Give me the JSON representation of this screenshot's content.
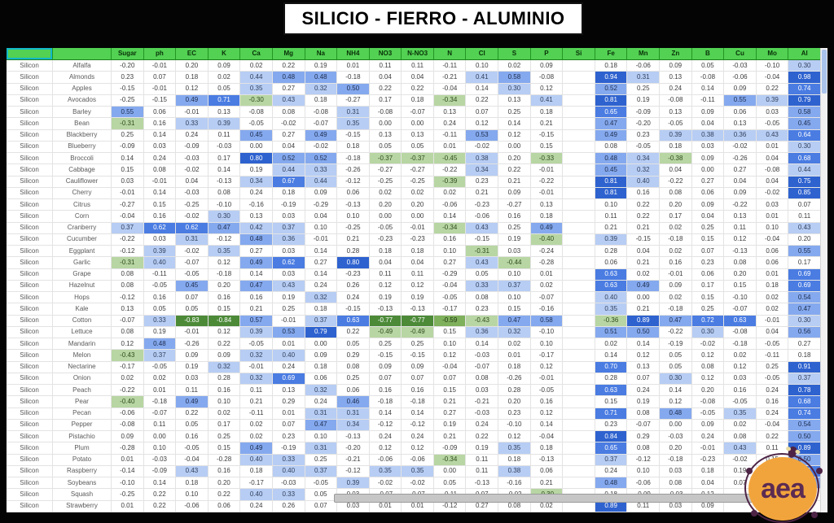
{
  "title": "SILICIO - FIERRO - ALUMINIO",
  "logo": {
    "text": "aea"
  },
  "colors": {
    "header_green": "#52d152",
    "blue_light": "#b7cdf4",
    "blue_medium": "#85a9ee",
    "blue_strong": "#4a7ce2",
    "blue_dark": "#2e62cf",
    "green_light": "#b8d6a3",
    "green_medium": "#7fb05c",
    "green_dark": "#4c8a38"
  },
  "chart_data": {
    "type": "heatmap",
    "title": "SILICIO - FIERRO - ALUMINIO",
    "row_label": "Silicon",
    "columns": [
      "Sugar",
      "ph",
      "EC",
      "K",
      "Ca",
      "Mg",
      "Na",
      "NH4",
      "NO3",
      "N-NO3",
      "N",
      "Cl",
      "S",
      "P",
      "Si",
      "Fe",
      "Mn",
      "Zn",
      "B",
      "Cu",
      "Mo",
      "Al"
    ],
    "crops": [
      "Alfalfa",
      "Almonds",
      "Apples",
      "Avocados",
      "Barley",
      "Bean",
      "Blackberry",
      "Blueberry",
      "Broccoli",
      "Cabbage",
      "Cauliflower",
      "Cherry",
      "Citrus",
      "Corn",
      "Cranberry",
      "Cucumber",
      "Eggplant",
      "Garlic",
      "Grape",
      "Hazelnut",
      "Hops",
      "Kale",
      "Cotton",
      "Lettuce",
      "Mandarin",
      "Melon",
      "Nectarine",
      "Onion",
      "Peach",
      "Pear",
      "Pecan",
      "Pepper",
      "Pistachio",
      "Plum",
      "Potato",
      "Raspberry",
      "Soybeans",
      "Squash",
      "Strawberry"
    ],
    "values": [
      [
        -0.2,
        -0.01,
        0.2,
        0.09,
        0.02,
        0.22,
        0.19,
        0.01,
        0.11,
        0.11,
        -0.11,
        0.1,
        0.02,
        0.09,
        "",
        0.18,
        -0.06,
        0.09,
        0.05,
        -0.03,
        -0.1,
        0.3
      ],
      [
        0.23,
        0.07,
        0.18,
        0.02,
        0.44,
        0.48,
        0.48,
        -0.18,
        0.04,
        0.04,
        -0.21,
        0.41,
        0.58,
        -0.08,
        "",
        0.94,
        0.31,
        0.13,
        -0.08,
        -0.06,
        -0.04,
        0.98
      ],
      [
        -0.15,
        -0.01,
        0.12,
        0.05,
        0.35,
        0.27,
        0.32,
        0.5,
        0.22,
        0.22,
        -0.04,
        0.14,
        0.3,
        0.12,
        "",
        0.52,
        0.25,
        0.24,
        0.14,
        0.09,
        0.22,
        0.74
      ],
      [
        -0.25,
        -0.15,
        0.49,
        0.71,
        -0.3,
        0.43,
        0.18,
        -0.27,
        0.17,
        0.18,
        -0.34,
        0.22,
        0.13,
        0.41,
        "",
        0.81,
        0.19,
        -0.08,
        -0.11,
        0.55,
        0.39,
        0.79
      ],
      [
        0.55,
        0.06,
        -0.01,
        0.13,
        -0.08,
        0.08,
        -0.08,
        0.31,
        -0.08,
        -0.07,
        0.13,
        0.07,
        0.25,
        0.18,
        "",
        0.65,
        -0.09,
        0.13,
        0.09,
        0.06,
        0.03,
        0.58
      ],
      [
        -0.31,
        0.16,
        0.33,
        0.39,
        -0.05,
        -0.02,
        -0.07,
        0.35,
        0.0,
        0.0,
        0.24,
        0.12,
        0.14,
        0.21,
        "",
        0.47,
        -0.2,
        -0.05,
        0.04,
        0.13,
        -0.05,
        0.45
      ],
      [
        0.25,
        0.14,
        0.24,
        0.11,
        0.45,
        0.27,
        0.49,
        -0.15,
        0.13,
        0.13,
        -0.11,
        0.53,
        0.12,
        -0.15,
        "",
        0.49,
        0.23,
        0.39,
        0.38,
        0.36,
        0.43,
        0.64
      ],
      [
        -0.09,
        0.03,
        -0.09,
        -0.03,
        0.0,
        0.04,
        -0.02,
        0.18,
        0.05,
        0.05,
        0.01,
        -0.02,
        0.0,
        0.15,
        "",
        0.08,
        -0.05,
        0.18,
        0.03,
        -0.02,
        0.01,
        0.3
      ],
      [
        0.14,
        0.24,
        -0.03,
        0.17,
        0.8,
        0.52,
        0.52,
        -0.18,
        -0.37,
        -0.37,
        -0.45,
        0.38,
        0.2,
        -0.33,
        "",
        0.48,
        0.34,
        -0.38,
        0.09,
        -0.26,
        0.04,
        0.68
      ],
      [
        0.15,
        0.08,
        -0.02,
        0.14,
        0.19,
        0.44,
        0.33,
        -0.26,
        -0.27,
        -0.27,
        -0.22,
        0.34,
        0.22,
        -0.01,
        "",
        0.45,
        0.32,
        0.04,
        0.0,
        0.27,
        -0.08,
        0.44
      ],
      [
        0.03,
        -0.01,
        0.04,
        -0.13,
        0.34,
        0.67,
        0.44,
        -0.12,
        -0.25,
        -0.25,
        -0.39,
        0.23,
        0.21,
        -0.22,
        "",
        0.81,
        0.4,
        -0.22,
        0.27,
        0.04,
        0.04,
        0.75
      ],
      [
        -0.01,
        0.14,
        -0.03,
        0.08,
        0.24,
        0.18,
        0.09,
        0.06,
        0.02,
        0.02,
        0.02,
        0.21,
        0.09,
        -0.01,
        "",
        0.81,
        0.16,
        0.08,
        0.06,
        0.09,
        -0.02,
        0.85
      ],
      [
        -0.27,
        0.15,
        -0.25,
        -0.1,
        -0.16,
        -0.19,
        -0.29,
        -0.13,
        0.2,
        0.2,
        -0.06,
        -0.23,
        -0.27,
        0.13,
        "",
        0.1,
        0.22,
        0.2,
        0.09,
        -0.22,
        0.03,
        0.07
      ],
      [
        -0.04,
        0.16,
        -0.02,
        0.3,
        0.13,
        0.03,
        0.04,
        0.1,
        0.0,
        0.0,
        0.14,
        -0.06,
        0.16,
        0.18,
        "",
        0.11,
        0.22,
        0.17,
        0.04,
        0.13,
        0.01,
        0.11
      ],
      [
        0.37,
        0.62,
        0.62,
        0.47,
        0.42,
        0.37,
        0.1,
        -0.25,
        -0.05,
        -0.01,
        -0.34,
        0.43,
        0.25,
        0.49,
        "",
        0.21,
        0.21,
        0.02,
        0.25,
        0.11,
        0.1,
        0.43
      ],
      [
        -0.22,
        0.03,
        0.31,
        -0.12,
        0.48,
        0.36,
        -0.01,
        0.21,
        -0.23,
        -0.23,
        0.16,
        -0.15,
        0.19,
        -0.4,
        "",
        0.39,
        -0.15,
        -0.18,
        0.15,
        0.12,
        -0.04,
        0.2
      ],
      [
        -0.12,
        0.39,
        -0.02,
        0.35,
        0.27,
        0.03,
        0.14,
        0.28,
        0.18,
        0.18,
        0.1,
        -0.31,
        0.03,
        -0.24,
        "",
        0.28,
        0.04,
        0.02,
        0.07,
        -0.13,
        0.06,
        0.55
      ],
      [
        -0.31,
        0.4,
        -0.07,
        0.12,
        0.49,
        0.62,
        0.27,
        0.8,
        0.04,
        0.04,
        0.27,
        0.43,
        -0.44,
        -0.28,
        "",
        0.06,
        0.21,
        0.16,
        0.23,
        0.08,
        0.06,
        0.17
      ],
      [
        0.08,
        -0.11,
        -0.05,
        -0.18,
        0.14,
        0.03,
        0.14,
        -0.23,
        0.11,
        0.11,
        -0.29,
        0.05,
        0.1,
        0.01,
        "",
        0.63,
        0.02,
        -0.01,
        0.06,
        0.2,
        0.01,
        0.69
      ],
      [
        0.08,
        -0.05,
        0.45,
        0.2,
        0.47,
        0.43,
        0.24,
        0.26,
        0.12,
        0.12,
        -0.04,
        0.33,
        0.37,
        0.02,
        "",
        0.63,
        0.49,
        0.09,
        0.17,
        0.15,
        0.18,
        0.69
      ],
      [
        -0.12,
        0.16,
        0.07,
        0.16,
        0.16,
        0.19,
        0.32,
        0.24,
        0.19,
        0.19,
        -0.05,
        0.08,
        0.1,
        -0.07,
        "",
        0.4,
        0.0,
        0.02,
        0.15,
        -0.1,
        0.02,
        0.54
      ],
      [
        0.13,
        0.05,
        0.05,
        0.15,
        0.21,
        0.25,
        0.18,
        -0.15,
        -0.13,
        -0.13,
        -0.17,
        0.23,
        0.15,
        -0.16,
        "",
        0.35,
        0.21,
        -0.18,
        0.25,
        -0.07,
        0.02,
        0.47
      ],
      [
        -0.07,
        0.33,
        -0.83,
        -0.84,
        0.57,
        -0.01,
        0.37,
        0.63,
        -0.77,
        -0.77,
        -0.59,
        -0.43,
        0.47,
        0.58,
        "",
        -0.36,
        0.89,
        0.47,
        0.72,
        0.63,
        -0.01,
        0.3
      ],
      [
        0.08,
        0.19,
        -0.01,
        0.12,
        0.39,
        0.53,
        0.79,
        0.22,
        -0.49,
        -0.49,
        0.15,
        0.36,
        0.32,
        -0.1,
        "",
        0.51,
        0.5,
        -0.22,
        0.3,
        -0.08,
        0.04,
        0.56
      ],
      [
        0.12,
        0.48,
        -0.26,
        0.22,
        -0.05,
        0.01,
        0.0,
        0.05,
        0.25,
        0.25,
        0.1,
        0.14,
        0.02,
        0.1,
        "",
        0.02,
        0.14,
        -0.19,
        -0.02,
        -0.18,
        -0.05,
        0.27
      ],
      [
        -0.43,
        0.37,
        0.09,
        0.09,
        0.32,
        0.4,
        0.09,
        0.29,
        -0.15,
        -0.15,
        0.12,
        -0.03,
        0.01,
        -0.17,
        "",
        0.14,
        0.12,
        0.05,
        0.12,
        0.02,
        -0.11,
        0.18
      ],
      [
        -0.17,
        -0.05,
        0.19,
        0.32,
        -0.01,
        0.24,
        0.18,
        0.08,
        0.09,
        0.09,
        -0.04,
        -0.07,
        0.18,
        0.12,
        "",
        0.7,
        0.13,
        0.05,
        0.08,
        0.12,
        0.25,
        0.91
      ],
      [
        0.02,
        0.02,
        0.03,
        0.28,
        0.32,
        0.69,
        0.06,
        0.25,
        0.07,
        0.07,
        0.07,
        0.08,
        -0.26,
        -0.01,
        "",
        0.28,
        0.07,
        0.3,
        0.12,
        0.03,
        -0.05,
        0.37
      ],
      [
        -0.22,
        0.01,
        0.11,
        0.16,
        0.11,
        0.13,
        0.32,
        0.06,
        0.16,
        0.16,
        0.15,
        0.03,
        0.28,
        -0.05,
        "",
        0.63,
        0.24,
        0.14,
        0.2,
        0.16,
        0.24,
        0.78
      ],
      [
        -0.4,
        -0.18,
        0.49,
        0.1,
        0.21,
        0.29,
        0.24,
        0.46,
        -0.18,
        -0.18,
        0.21,
        -0.21,
        0.2,
        0.16,
        "",
        0.15,
        0.19,
        0.12,
        -0.08,
        -0.05,
        0.16,
        0.68
      ],
      [
        -0.06,
        -0.07,
        0.22,
        0.02,
        -0.11,
        0.01,
        0.31,
        0.31,
        0.14,
        0.14,
        0.27,
        -0.03,
        0.23,
        0.12,
        "",
        0.71,
        0.08,
        0.48,
        -0.05,
        0.35,
        0.24,
        0.74
      ],
      [
        -0.08,
        0.11,
        0.05,
        0.17,
        0.02,
        0.07,
        0.47,
        0.34,
        -0.12,
        -0.12,
        0.19,
        0.24,
        -0.1,
        0.14,
        "",
        0.23,
        -0.07,
        0.0,
        0.09,
        0.02,
        -0.04,
        0.54
      ],
      [
        0.09,
        0.0,
        0.16,
        0.25,
        0.02,
        0.23,
        0.1,
        -0.13,
        0.24,
        0.24,
        0.21,
        0.22,
        0.12,
        -0.04,
        "",
        0.84,
        0.29,
        -0.03,
        0.24,
        0.08,
        0.22,
        0.5
      ],
      [
        -0.28,
        0.1,
        -0.05,
        0.15,
        0.49,
        -0.19,
        0.31,
        -0.2,
        0.12,
        0.12,
        -0.09,
        0.19,
        0.35,
        0.18,
        "",
        0.65,
        0.08,
        0.2,
        -0.01,
        0.43,
        0.11,
        0.89
      ],
      [
        0.01,
        -0.03,
        -0.04,
        -0.28,
        0.4,
        0.33,
        0.25,
        -0.21,
        -0.06,
        -0.06,
        -0.34,
        0.11,
        0.18,
        -0.13,
        "",
        0.37,
        -0.12,
        -0.18,
        -0.23,
        -0.02,
        0.15,
        0.5
      ],
      [
        -0.14,
        -0.09,
        0.43,
        0.16,
        0.18,
        0.4,
        0.37,
        -0.12,
        0.35,
        0.35,
        0.0,
        0.11,
        0.38,
        0.06,
        "",
        0.24,
        0.1,
        0.03,
        0.18,
        0.19,
        0.2,
        0.66
      ],
      [
        -0.1,
        0.14,
        0.18,
        0.2,
        -0.17,
        -0.03,
        -0.05,
        0.39,
        -0.02,
        -0.02,
        0.05,
        -0.13,
        -0.16,
        0.21,
        "",
        0.48,
        -0.06,
        0.08,
        0.04,
        0.07,
        "",
        0.47
      ],
      [
        -0.25,
        0.22,
        0.1,
        0.22,
        0.4,
        0.33,
        0.05,
        0.03,
        -0.07,
        -0.07,
        -0.11,
        0.07,
        -0.02,
        -0.3,
        "",
        0.18,
        -0.09,
        -0.03,
        0.12,
        "",
        "",
        0.04
      ],
      [
        0.01,
        0.22,
        -0.06,
        0.06,
        0.24,
        0.26,
        0.07,
        0.03,
        0.01,
        0.01,
        -0.12,
        0.27,
        0.08,
        0.02,
        "",
        0.89,
        0.11,
        0.03,
        0.09,
        "",
        "",
        ""
      ]
    ]
  }
}
